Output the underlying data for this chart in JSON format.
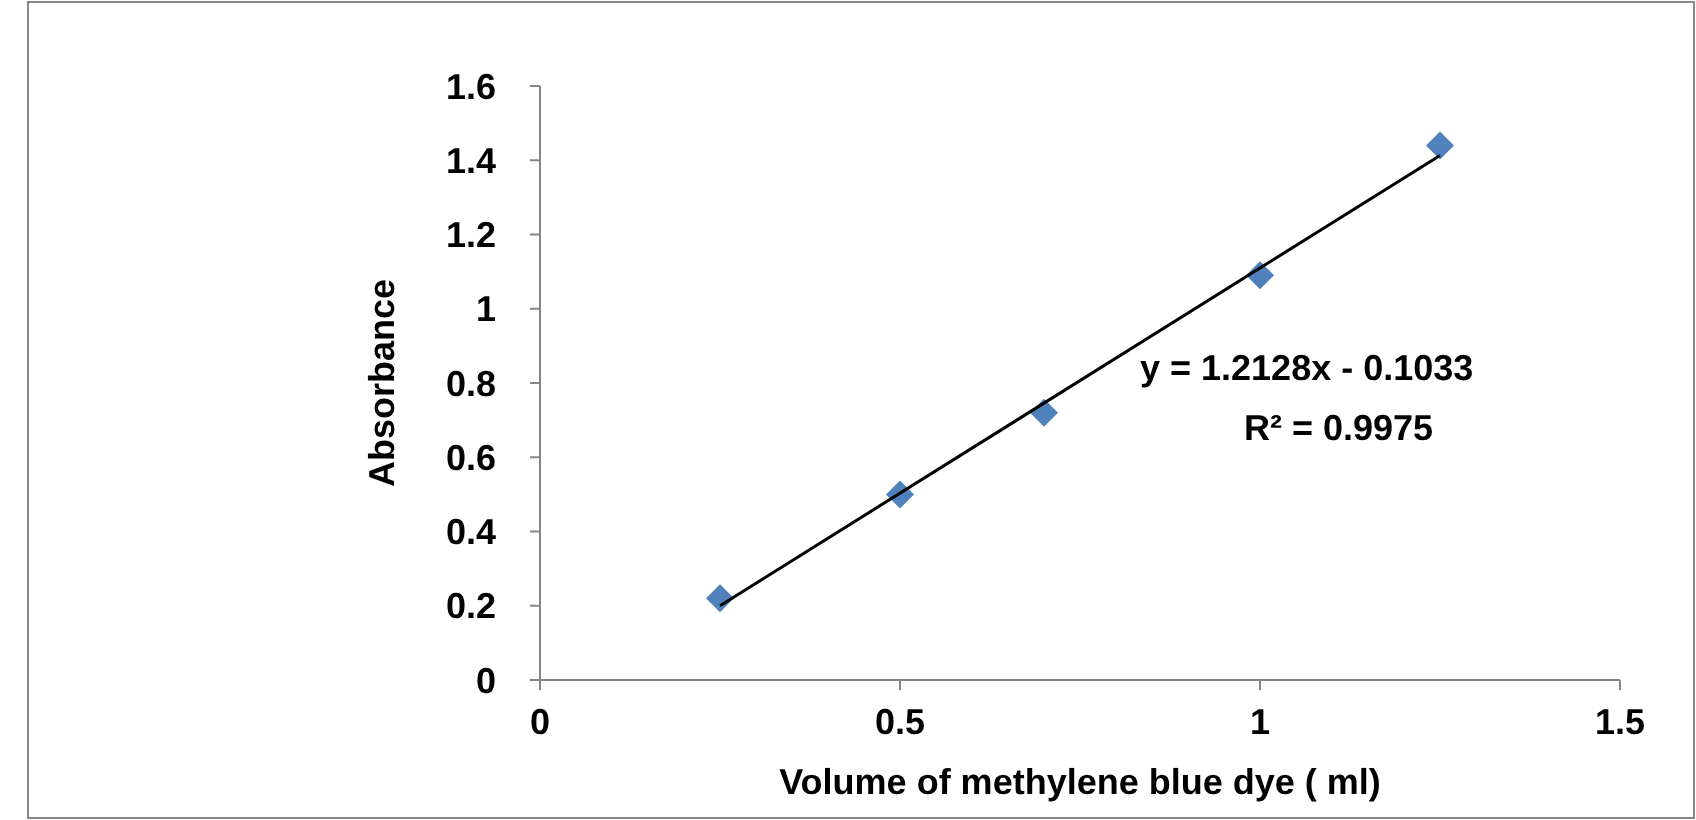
{
  "chart_data": {
    "type": "scatter",
    "xlabel": "Volume of methylene blue dye ( ml)",
    "ylabel": "Absorbance",
    "x": [
      0.25,
      0.5,
      0.7,
      1.0,
      1.25
    ],
    "series": [
      {
        "type": "scatter",
        "color": "#4f81bd",
        "marker": "diamond",
        "values": [
          0.22,
          0.5,
          0.72,
          1.09,
          1.44
        ]
      },
      {
        "type": "line",
        "color": "#000000",
        "line_style": "solid",
        "marker": "none",
        "x": [
          0.25,
          1.25
        ],
        "values": [
          0.2,
          1.413
        ]
      }
    ],
    "xlim": [
      0,
      1.5
    ],
    "xticks": [
      0,
      0.5,
      1,
      1.5
    ],
    "ylim": [
      0,
      1.6
    ],
    "yticks": [
      0,
      0.2,
      0.4,
      0.6,
      0.8,
      1,
      1.2,
      1.4,
      1.6
    ],
    "grid": false,
    "annotations": [
      "y = 1.2128x - 0.1033",
      "R² = 0.9975"
    ]
  }
}
